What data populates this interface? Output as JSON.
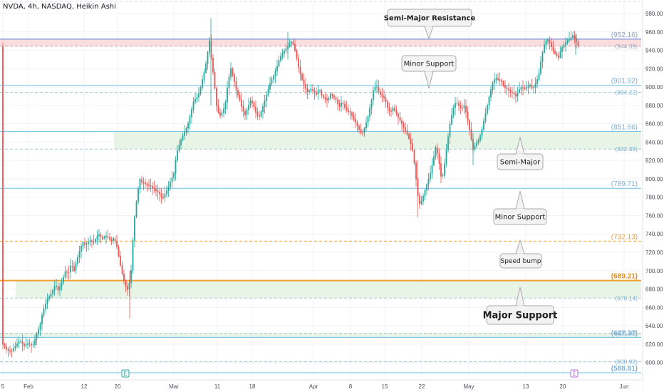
{
  "header": {
    "ticker_line": "NVDA, 4h, NASDAQ, Heikin Ashi"
  },
  "colors": {
    "up": "#26a69a",
    "down": "#ef5350",
    "resistance_line": "#5b7bd5",
    "resistance_zone": "#fbdde0",
    "support_zone": "#e7f4e6",
    "support_line": "#6ec1e4",
    "speed_bump": "#f5a623",
    "major_support": "#f0a030",
    "grid": "#f0f3fa"
  },
  "chart_data": {
    "type": "candlestick",
    "title": "NVDA, 4h, NASDAQ, Heikin Ashi",
    "y_axis": {
      "ticks": [
        600,
        620,
        640,
        660,
        680,
        700,
        720,
        740,
        760,
        780,
        800,
        820,
        840,
        860,
        880,
        900,
        920,
        940,
        960,
        980
      ],
      "tick_labels": [
        "600.00",
        "620.00",
        "640.00",
        "660.00",
        "680.00",
        "700.00",
        "720.00",
        "740.00",
        "760.00",
        "780.00",
        "800.00",
        "820.00",
        "840.00",
        "860.00",
        "880.00",
        "900.00",
        "920.00",
        "940.00",
        "960.00",
        "980.00"
      ],
      "range": [
        586,
        990
      ]
    },
    "x_axis": {
      "ticks": [
        {
          "label": "5"
        },
        {
          "label": "Feb"
        },
        {
          "label": "12"
        },
        {
          "label": "20"
        },
        {
          "label": "Mar"
        },
        {
          "label": "11"
        },
        {
          "label": "18"
        },
        {
          "label": "Apr"
        },
        {
          "label": "8"
        },
        {
          "label": "15"
        },
        {
          "label": "22"
        },
        {
          "label": "May"
        },
        {
          "label": "13"
        },
        {
          "label": "20"
        },
        {
          "label": "Jun"
        }
      ]
    },
    "levels": [
      {
        "value": 952.16,
        "label": "(952.16)",
        "kind": "resistance"
      },
      {
        "value": 944.39,
        "label": "(944.39)",
        "kind": "resistance-low"
      },
      {
        "value": 901.92,
        "label": "(901.92)",
        "kind": "support"
      },
      {
        "value": 894.22,
        "label": "(894.22)",
        "kind": "support-low"
      },
      {
        "value": 851.66,
        "label": "(851.66)",
        "kind": "support"
      },
      {
        "value": 832.39,
        "label": "(832.39)",
        "kind": "support-low"
      },
      {
        "value": 789.71,
        "label": "(789.71)",
        "kind": "support"
      },
      {
        "value": 732.13,
        "label": "(732.13)",
        "kind": "speed-bump"
      },
      {
        "value": 689.21,
        "label": "(689.21)",
        "kind": "major"
      },
      {
        "value": 670.14,
        "label": "(670.14)",
        "kind": "support-low"
      },
      {
        "value": 631.92,
        "label": "(631.92)",
        "kind": "support-low"
      },
      {
        "value": 627.37,
        "label": "(627.37)",
        "kind": "support"
      },
      {
        "value": 600.92,
        "label": "(600.92)",
        "kind": "support-low"
      },
      {
        "value": 588.81,
        "label": "(588.81)",
        "kind": "support"
      }
    ],
    "zones": [
      {
        "from": 944.39,
        "to": 952.16,
        "kind": "resistance"
      },
      {
        "from": 832.39,
        "to": 851.66,
        "kind": "support"
      },
      {
        "from": 670.14,
        "to": 689.21,
        "kind": "support"
      },
      {
        "from": 627.37,
        "to": 631.92,
        "kind": "support"
      }
    ],
    "annotations": [
      {
        "text": "Semi-Major Resistance"
      },
      {
        "text": "Minor Support"
      },
      {
        "text": "Semi-Major"
      },
      {
        "text": "Minor Support"
      },
      {
        "text": "Speed bump"
      },
      {
        "text": "Major Support"
      }
    ],
    "event_markers": [
      {
        "text": "E"
      },
      {
        "text": "Σ"
      }
    ],
    "price_path": [
      [
        4,
        620
      ],
      [
        10,
        614
      ],
      [
        16,
        612
      ],
      [
        22,
        618
      ],
      [
        28,
        624
      ],
      [
        34,
        618
      ],
      [
        40,
        621
      ],
      [
        46,
        618
      ],
      [
        52,
        632
      ],
      [
        56,
        640
      ],
      [
        60,
        655
      ],
      [
        66,
        668
      ],
      [
        72,
        675
      ],
      [
        78,
        685
      ],
      [
        82,
        678
      ],
      [
        88,
        690
      ],
      [
        92,
        700
      ],
      [
        96,
        697
      ],
      [
        100,
        708
      ],
      [
        104,
        700
      ],
      [
        108,
        712
      ],
      [
        112,
        722
      ],
      [
        116,
        731
      ],
      [
        120,
        728
      ],
      [
        126,
        733
      ],
      [
        132,
        731
      ],
      [
        138,
        740
      ],
      [
        144,
        735
      ],
      [
        150,
        738
      ],
      [
        156,
        732
      ],
      [
        160,
        736
      ],
      [
        164,
        726
      ],
      [
        168,
        710
      ],
      [
        172,
        695
      ],
      [
        176,
        684
      ],
      [
        180,
        678
      ],
      [
        184,
        700
      ],
      [
        188,
        752
      ],
      [
        192,
        778
      ],
      [
        196,
        800
      ],
      [
        200,
        796
      ],
      [
        206,
        794
      ],
      [
        212,
        792
      ],
      [
        218,
        788
      ],
      [
        224,
        784
      ],
      [
        228,
        778
      ],
      [
        232,
        784
      ],
      [
        236,
        790
      ],
      [
        240,
        798
      ],
      [
        244,
        806
      ],
      [
        248,
        828
      ],
      [
        252,
        838
      ],
      [
        256,
        846
      ],
      [
        260,
        852
      ],
      [
        264,
        860
      ],
      [
        268,
        872
      ],
      [
        272,
        885
      ],
      [
        276,
        888
      ],
      [
        280,
        894
      ],
      [
        284,
        908
      ],
      [
        288,
        920
      ],
      [
        292,
        940
      ],
      [
        294,
        950
      ],
      [
        296,
        935
      ],
      [
        300,
        910
      ],
      [
        304,
        880
      ],
      [
        308,
        868
      ],
      [
        312,
        872
      ],
      [
        316,
        880
      ],
      [
        320,
        905
      ],
      [
        324,
        920
      ],
      [
        328,
        910
      ],
      [
        332,
        895
      ],
      [
        336,
        888
      ],
      [
        340,
        876
      ],
      [
        344,
        870
      ],
      [
        348,
        878
      ],
      [
        352,
        886
      ],
      [
        356,
        880
      ],
      [
        360,
        870
      ],
      [
        364,
        868
      ],
      [
        368,
        876
      ],
      [
        372,
        886
      ],
      [
        376,
        896
      ],
      [
        380,
        906
      ],
      [
        384,
        912
      ],
      [
        388,
        920
      ],
      [
        392,
        930
      ],
      [
        396,
        936
      ],
      [
        400,
        940
      ],
      [
        404,
        944
      ],
      [
        408,
        950
      ],
      [
        412,
        946
      ],
      [
        416,
        934
      ],
      [
        420,
        918
      ],
      [
        424,
        908
      ],
      [
        428,
        900
      ],
      [
        432,
        894
      ],
      [
        436,
        898
      ],
      [
        440,
        896
      ],
      [
        444,
        892
      ],
      [
        448,
        898
      ],
      [
        452,
        890
      ],
      [
        456,
        888
      ],
      [
        460,
        885
      ],
      [
        464,
        892
      ],
      [
        468,
        890
      ],
      [
        472,
        886
      ],
      [
        476,
        878
      ],
      [
        480,
        884
      ],
      [
        484,
        878
      ],
      [
        488,
        874
      ],
      [
        492,
        872
      ],
      [
        496,
        866
      ],
      [
        500,
        860
      ],
      [
        504,
        854
      ],
      [
        508,
        848
      ],
      [
        512,
        856
      ],
      [
        516,
        866
      ],
      [
        520,
        880
      ],
      [
        524,
        896
      ],
      [
        528,
        902
      ],
      [
        532,
        894
      ],
      [
        536,
        890
      ],
      [
        540,
        888
      ],
      [
        544,
        878
      ],
      [
        548,
        872
      ],
      [
        552,
        878
      ],
      [
        556,
        872
      ],
      [
        560,
        866
      ],
      [
        564,
        860
      ],
      [
        568,
        854
      ],
      [
        572,
        848
      ],
      [
        576,
        840
      ],
      [
        580,
        828
      ],
      [
        584,
        800
      ],
      [
        588,
        772
      ],
      [
        592,
        776
      ],
      [
        596,
        786
      ],
      [
        600,
        796
      ],
      [
        604,
        806
      ],
      [
        608,
        820
      ],
      [
        612,
        836
      ],
      [
        614,
        828
      ],
      [
        618,
        810
      ],
      [
        620,
        796
      ],
      [
        624,
        816
      ],
      [
        628,
        840
      ],
      [
        632,
        862
      ],
      [
        636,
        876
      ],
      [
        640,
        884
      ],
      [
        644,
        880
      ],
      [
        648,
        876
      ],
      [
        652,
        880
      ],
      [
        656,
        866
      ],
      [
        660,
        850
      ],
      [
        664,
        832
      ],
      [
        668,
        838
      ],
      [
        672,
        842
      ],
      [
        676,
        852
      ],
      [
        680,
        866
      ],
      [
        684,
        880
      ],
      [
        688,
        894
      ],
      [
        692,
        906
      ],
      [
        696,
        910
      ],
      [
        700,
        908
      ],
      [
        704,
        906
      ],
      [
        708,
        900
      ],
      [
        712,
        898
      ],
      [
        716,
        895
      ],
      [
        720,
        894
      ],
      [
        724,
        890
      ],
      [
        728,
        896
      ],
      [
        732,
        900
      ],
      [
        736,
        898
      ],
      [
        740,
        900
      ],
      [
        744,
        902
      ],
      [
        748,
        898
      ],
      [
        752,
        904
      ],
      [
        756,
        912
      ],
      [
        760,
        932
      ],
      [
        764,
        946
      ],
      [
        768,
        952
      ],
      [
        772,
        948
      ],
      [
        776,
        940
      ],
      [
        780,
        936
      ],
      [
        784,
        932
      ],
      [
        788,
        942
      ],
      [
        792,
        946
      ],
      [
        796,
        950
      ],
      [
        800,
        952
      ],
      [
        804,
        956
      ],
      [
        808,
        952
      ],
      [
        812,
        944
      ]
    ]
  },
  "scale_labels": [
    "600.00",
    "620.00",
    "640.00",
    "660.00",
    "680.00",
    "700.00",
    "720.00",
    "740.00",
    "760.00",
    "780.00",
    "800.00",
    "820.00",
    "840.00",
    "860.00",
    "880.00",
    "900.00",
    "920.00",
    "940.00",
    "960.00",
    "980.00"
  ]
}
